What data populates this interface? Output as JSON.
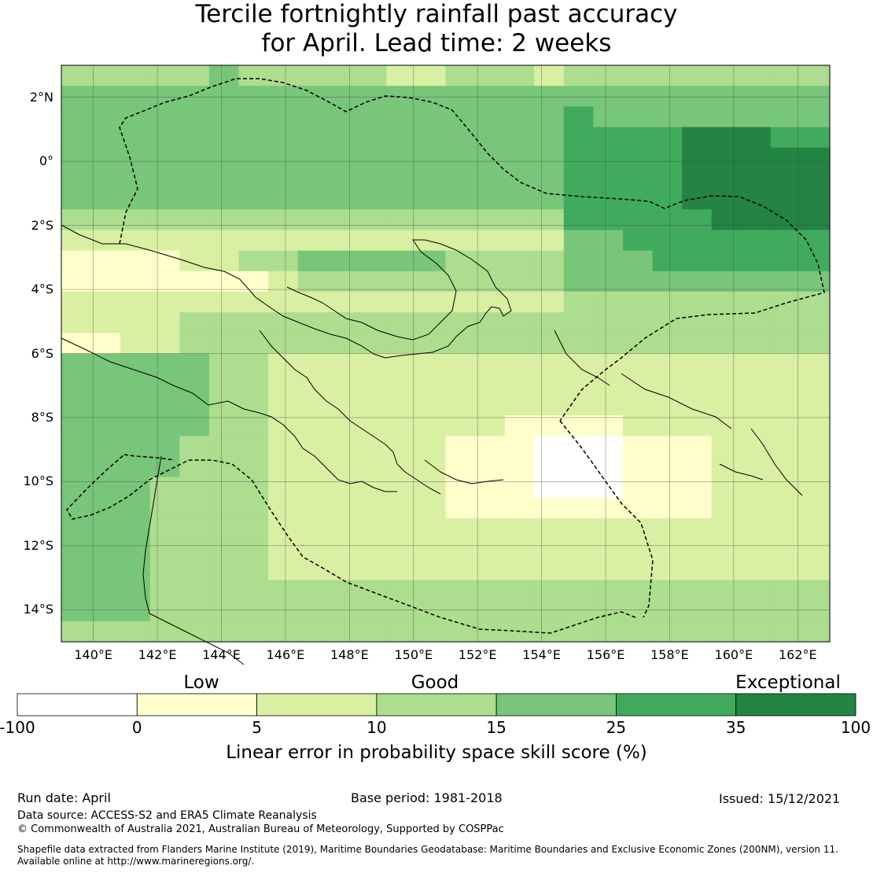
{
  "title": {
    "line1": "Tercile fortnightly rainfall past accuracy",
    "line2": "for April. Lead time: 2 weeks"
  },
  "lon_labels": [
    "140°E",
    "142°E",
    "144°E",
    "146°E",
    "148°E",
    "150°E",
    "152°E",
    "154°E",
    "156°E",
    "158°E",
    "160°E",
    "162°E"
  ],
  "lat_labels": [
    "2°N",
    "0°",
    "2°S",
    "4°S",
    "6°S",
    "8°S",
    "10°S",
    "12°S",
    "14°S"
  ],
  "colorbar": {
    "categories": [
      "Low",
      "Good",
      "Exceptional"
    ],
    "ticks": [
      "-100",
      "0",
      "5",
      "10",
      "15",
      "25",
      "35",
      "100"
    ],
    "colors": [
      "#ffffff",
      "#ffffcc",
      "#d9f0a3",
      "#addd8e",
      "#78c679",
      "#41ab5d",
      "#238443"
    ],
    "label": "Linear error in probability space skill score (%)"
  },
  "footer": {
    "run_date": "Run date: April",
    "base_period": "Base period: 1981-2018",
    "issued": "Issued: 15/12/2021",
    "data_source": "Data source: ACCESS-S2 and ERA5 Climate Reanalysis",
    "copyright": "© Commonwealth of Australia 2021, Australian Bureau of Meteorology, Supported by COSPPac",
    "shapefile1": "Shapefile data extracted from Flanders Marine Institute (2019), Maritime Boundaries Geodatabase: Maritime Boundaries and Exclusive Economic Zones (200NM), version 11.",
    "shapefile2": "Available online at http://www.marineregions.org/."
  },
  "map_data": {
    "lon_range": [
      139,
      163
    ],
    "lat_range": [
      -15,
      3
    ],
    "grid_rows_north_to_south": [
      "33333433333223332333333333",
      "44444444444444444444444444",
      "44444444444444444544444444",
      "44444444444444444555566655",
      "44444444444444444555566666",
      "44444444444444444555566666",
      "44444444444444444555566666",
      "33333333333333333555556666",
      "22222222222222222445555555",
      "11112233444443333444555555",
      "11111112333333333444444444",
      "22222222222222222333333333",
      "22223333333333333333333333",
      "11223333333333333333333333",
      "44444332222222222222222222",
      "44444332222222222222222222",
      "44444332222222222222222222",
      "44444332222222211112222222",
      "44443332222221110001112222",
      "44443332222221110001112222",
      "44433332222221110001112222",
      "44433332222221111111112222",
      "44433332222222222222222222",
      "44433332222222222222222222",
      "44433332222222222222222222",
      "44433333333333333333333333",
      "44433333333333333333333333",
      "33333333333333333333333333"
    ]
  }
}
